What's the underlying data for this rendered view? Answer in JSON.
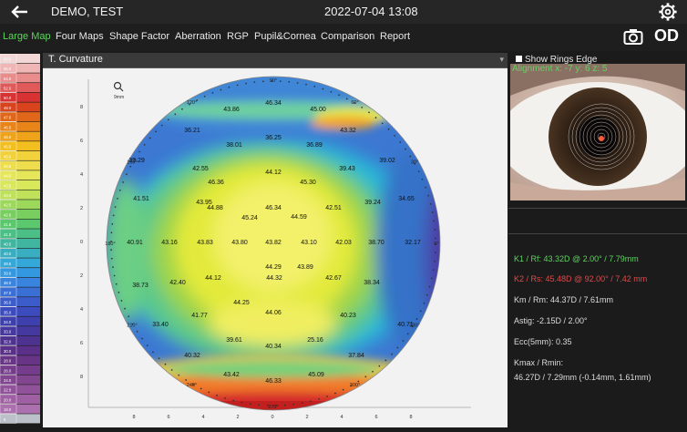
{
  "header": {
    "patient": "DEMO, TEST",
    "datetime": "2022-07-04 13:08",
    "eye": "OD"
  },
  "tabs": [
    {
      "label": "Large Map",
      "active": true
    },
    {
      "label": "Four Maps"
    },
    {
      "label": "Shape Factor"
    },
    {
      "label": "Aberration"
    },
    {
      "label": "RGP"
    },
    {
      "label": "Pupil&Cornea"
    },
    {
      "label": "Comparison"
    },
    {
      "label": "Report"
    }
  ],
  "scale_labels": [
    "58.0",
    "56.0",
    "54.0",
    "52.0",
    "50.0",
    "48.0",
    "47.0",
    "46.5",
    "46.0",
    "45.5",
    "45.0",
    "44.5",
    "44.0",
    "43.5",
    "43.0",
    "42.5",
    "42.0",
    "41.5",
    "41.0",
    "40.5",
    "40.0",
    "39.5",
    "39.0",
    "38.0",
    "37.0",
    "36.0",
    "35.0",
    "34.0",
    "33.0",
    "32.0",
    "30.0",
    "28.0",
    "26.0",
    "24.0",
    "22.0",
    "20.0",
    "18.0",
    "8"
  ],
  "map": {
    "title": "T. Curvature",
    "unit_label": "9mm",
    "angle_labels": [
      "90°",
      "60°",
      "30°",
      "0°",
      "330°",
      "300°",
      "270°",
      "240°",
      "210°",
      "180°",
      "150°",
      "120°"
    ],
    "values": [
      "46.34",
      "43.86",
      "45.00",
      "36.21",
      "36.25",
      "43.32",
      "38.01",
      "36.89",
      "39.29",
      "42.55",
      "44.12",
      "39.43",
      "39.02",
      "46.36",
      "45.30",
      "41.51",
      "43.95",
      "44.88",
      "46.34",
      "44.59",
      "42.51",
      "39.24",
      "34.65",
      "45.24",
      "40.91",
      "43.16",
      "43.83",
      "43.80",
      "43.82",
      "43.10",
      "42.03",
      "38.70",
      "32.17",
      "44.29",
      "43.89",
      "38.73",
      "42.40",
      "44.12",
      "44.32",
      "42.67",
      "38.34",
      "44.25",
      "44.06",
      "41.77",
      "40.23",
      "33.40",
      "40.71",
      "39.61",
      "25.16",
      "40.34",
      "40.32",
      "37.84",
      "43.42",
      "46.33",
      "45.09"
    ],
    "x_ticks": [
      "8",
      "6",
      "4",
      "2",
      "0",
      "2",
      "4",
      "6",
      "8"
    ],
    "y_ticks": [
      "8",
      "6",
      "4",
      "2",
      "0",
      "2",
      "4",
      "6",
      "8"
    ]
  },
  "right": {
    "show_rings_edge": "Show Rings Edge",
    "alignment": "Alignment x: -7 y: 6 z: 5",
    "k1": "K1 / Rf: 43.32D @ 2.00° / 7.79mm",
    "k2": "K2 / Rs: 45.48D @ 92.00° / 7.42 mm",
    "km": "Km / Rm: 44.37D / 7.61mm",
    "astig": "Astig: -2.15D / 2.00°",
    "ecc": "Ecc(5mm): 0.35",
    "kmax_label": "Kmax / Rmin:",
    "kmax_value": "46.27D / 7.29mm (-0.14mm, 1.61mm)"
  }
}
